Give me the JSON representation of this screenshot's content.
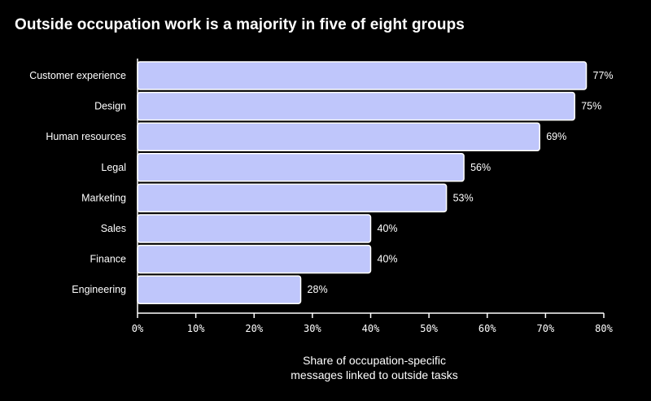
{
  "chart_data": {
    "type": "bar",
    "orientation": "horizontal",
    "title": "Outside occupation work is a majority in five of eight groups",
    "categories": [
      "Customer experience",
      "Design",
      "Human resources",
      "Legal",
      "Marketing",
      "Sales",
      "Finance",
      "Engineering"
    ],
    "values": [
      77,
      75,
      69,
      56,
      53,
      40,
      40,
      28
    ],
    "value_labels": [
      "77%",
      "75%",
      "69%",
      "56%",
      "53%",
      "40%",
      "40%",
      "28%"
    ],
    "xlabel_line1": "Share of occupation-specific",
    "xlabel_line2": "messages linked to outside tasks",
    "xlim": [
      0,
      80
    ],
    "xticks": [
      0,
      10,
      20,
      30,
      40,
      50,
      60,
      70,
      80
    ],
    "xtick_labels": [
      "0%",
      "10%",
      "20%",
      "30%",
      "40%",
      "50%",
      "60%",
      "70%",
      "80%"
    ],
    "grid": false,
    "bar_color": "#bfc6fb",
    "bar_stroke": "#ffffff",
    "axis_color": "#ffffff",
    "background": "#000000"
  }
}
